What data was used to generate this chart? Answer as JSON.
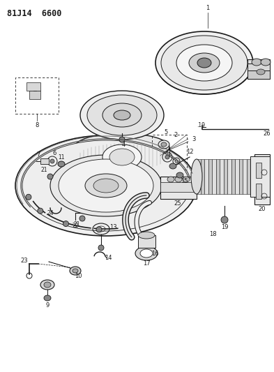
{
  "title": "81J14  6600",
  "bg": "#ffffff",
  "lc": "#1a1a1a",
  "figsize": [
    3.93,
    5.33
  ],
  "dpi": 100
}
